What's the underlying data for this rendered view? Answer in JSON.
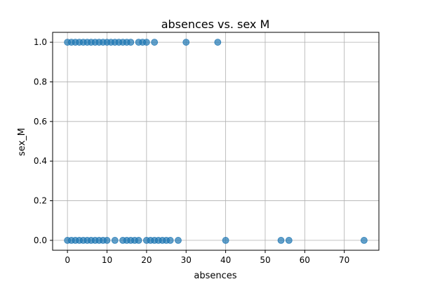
{
  "chart_data": {
    "type": "scatter",
    "title": "absences vs. sex M",
    "xlabel": "absences",
    "ylabel": "sex_M",
    "xlim": [
      -3.75,
      78.75
    ],
    "ylim": [
      -0.05,
      1.05
    ],
    "xticks": [
      0,
      10,
      20,
      30,
      40,
      50,
      60,
      70
    ],
    "yticks": [
      0.0,
      0.2,
      0.4,
      0.6,
      0.8,
      1.0
    ],
    "xtick_labels": [
      "0",
      "10",
      "20",
      "30",
      "40",
      "50",
      "60",
      "70"
    ],
    "ytick_labels": [
      "0.0",
      "0.2",
      "0.4",
      "0.6",
      "0.8",
      "1.0"
    ],
    "grid": true,
    "marker_color": "#1f77b4",
    "marker_alpha": 0.7,
    "series": [
      {
        "points": [
          {
            "x": 0,
            "y": 1
          },
          {
            "x": 1,
            "y": 1
          },
          {
            "x": 2,
            "y": 1
          },
          {
            "x": 3,
            "y": 1
          },
          {
            "x": 4,
            "y": 1
          },
          {
            "x": 5,
            "y": 1
          },
          {
            "x": 6,
            "y": 1
          },
          {
            "x": 7,
            "y": 1
          },
          {
            "x": 8,
            "y": 1
          },
          {
            "x": 9,
            "y": 1
          },
          {
            "x": 10,
            "y": 1
          },
          {
            "x": 11,
            "y": 1
          },
          {
            "x": 12,
            "y": 1
          },
          {
            "x": 13,
            "y": 1
          },
          {
            "x": 14,
            "y": 1
          },
          {
            "x": 15,
            "y": 1
          },
          {
            "x": 16,
            "y": 1
          },
          {
            "x": 18,
            "y": 1
          },
          {
            "x": 19,
            "y": 1
          },
          {
            "x": 20,
            "y": 1
          },
          {
            "x": 22,
            "y": 1
          },
          {
            "x": 30,
            "y": 1
          },
          {
            "x": 38,
            "y": 1
          },
          {
            "x": 0,
            "y": 0
          },
          {
            "x": 1,
            "y": 0
          },
          {
            "x": 2,
            "y": 0
          },
          {
            "x": 3,
            "y": 0
          },
          {
            "x": 4,
            "y": 0
          },
          {
            "x": 5,
            "y": 0
          },
          {
            "x": 6,
            "y": 0
          },
          {
            "x": 7,
            "y": 0
          },
          {
            "x": 8,
            "y": 0
          },
          {
            "x": 9,
            "y": 0
          },
          {
            "x": 10,
            "y": 0
          },
          {
            "x": 12,
            "y": 0
          },
          {
            "x": 14,
            "y": 0
          },
          {
            "x": 15,
            "y": 0
          },
          {
            "x": 16,
            "y": 0
          },
          {
            "x": 17,
            "y": 0
          },
          {
            "x": 18,
            "y": 0
          },
          {
            "x": 20,
            "y": 0
          },
          {
            "x": 21,
            "y": 0
          },
          {
            "x": 22,
            "y": 0
          },
          {
            "x": 23,
            "y": 0
          },
          {
            "x": 24,
            "y": 0
          },
          {
            "x": 25,
            "y": 0
          },
          {
            "x": 26,
            "y": 0
          },
          {
            "x": 28,
            "y": 0
          },
          {
            "x": 40,
            "y": 0
          },
          {
            "x": 54,
            "y": 0
          },
          {
            "x": 56,
            "y": 0
          },
          {
            "x": 75,
            "y": 0
          }
        ]
      }
    ]
  }
}
